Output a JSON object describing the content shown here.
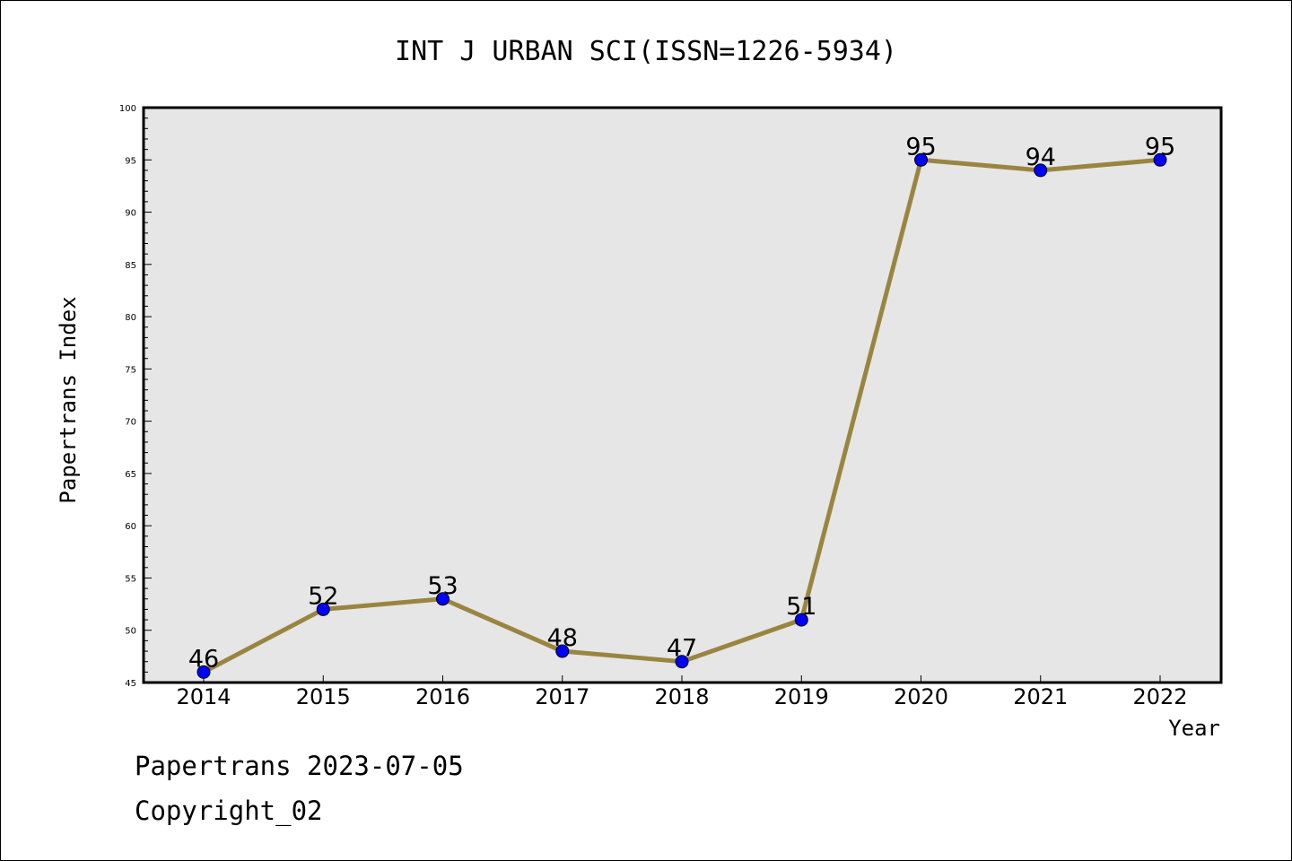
{
  "chart_data": {
    "type": "line",
    "title": "INT J URBAN SCI(ISSN=1226-5934)",
    "xlabel": "Year",
    "ylabel": "Papertrans Index",
    "categories": [
      "2014",
      "2015",
      "2016",
      "2017",
      "2018",
      "2019",
      "2020",
      "2021",
      "2022"
    ],
    "series": [
      {
        "values": [
          46,
          52,
          53,
          48,
          47,
          51,
          95,
          94,
          95
        ]
      }
    ],
    "ylim": [
      45,
      100
    ],
    "yticks": [
      45,
      50,
      55,
      60,
      65,
      70,
      75,
      80,
      85,
      90,
      95,
      100
    ],
    "grid": false,
    "plot_background": "#e6e6e6",
    "line_color": "#9a8540",
    "marker_color": "#0000ff"
  },
  "footer": {
    "line1": "Papertrans 2023-07-05",
    "line2": "Copyright_02"
  }
}
